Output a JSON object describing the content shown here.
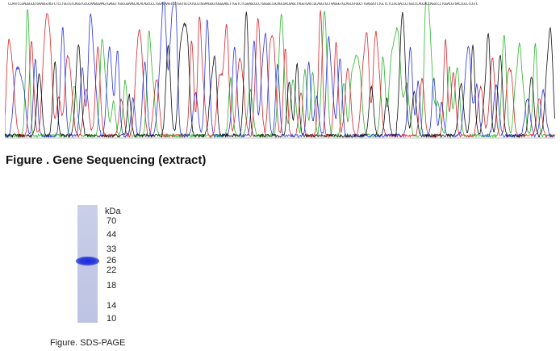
{
  "sequencing": {
    "sequence_text": "CCAATCCGAGGGCGTGAAGGCAGTCTCCTGGTGTCAGGTGCGCAAGGGAAGTGAGGTTGGCGGAAGCACACAGCGCCTGGACAAGTCCTGGTGCCATGCGTGGAAGGGTGGGGAGCTTGGTCTCGGAGCGCCTGGGGCCGCAGCGACGAGCTAGGTGACCGCAGGTGCTAAGGGTGCAGCGTGGCTTGAGGGTCTGCTCTCCGCGACCCTGGCCCAGCACCAGGCCCTGGACGTGACCGCCTCGTC",
    "caption": "Figure . Gene Sequencing (extract)"
  },
  "sds_page": {
    "unit_label": "kDa",
    "markers": [
      "70",
      "44",
      "33",
      "26",
      "22",
      "18",
      "14",
      "10"
    ],
    "caption": "Figure. SDS-PAGE",
    "lane_color": "#c4c9e6",
    "band_color": "#1a2be0"
  },
  "colors": {
    "trace_green": "#2fb52f",
    "trace_red": "#d9262c",
    "trace_blue": "#2a35d8",
    "trace_black": "#111111"
  }
}
